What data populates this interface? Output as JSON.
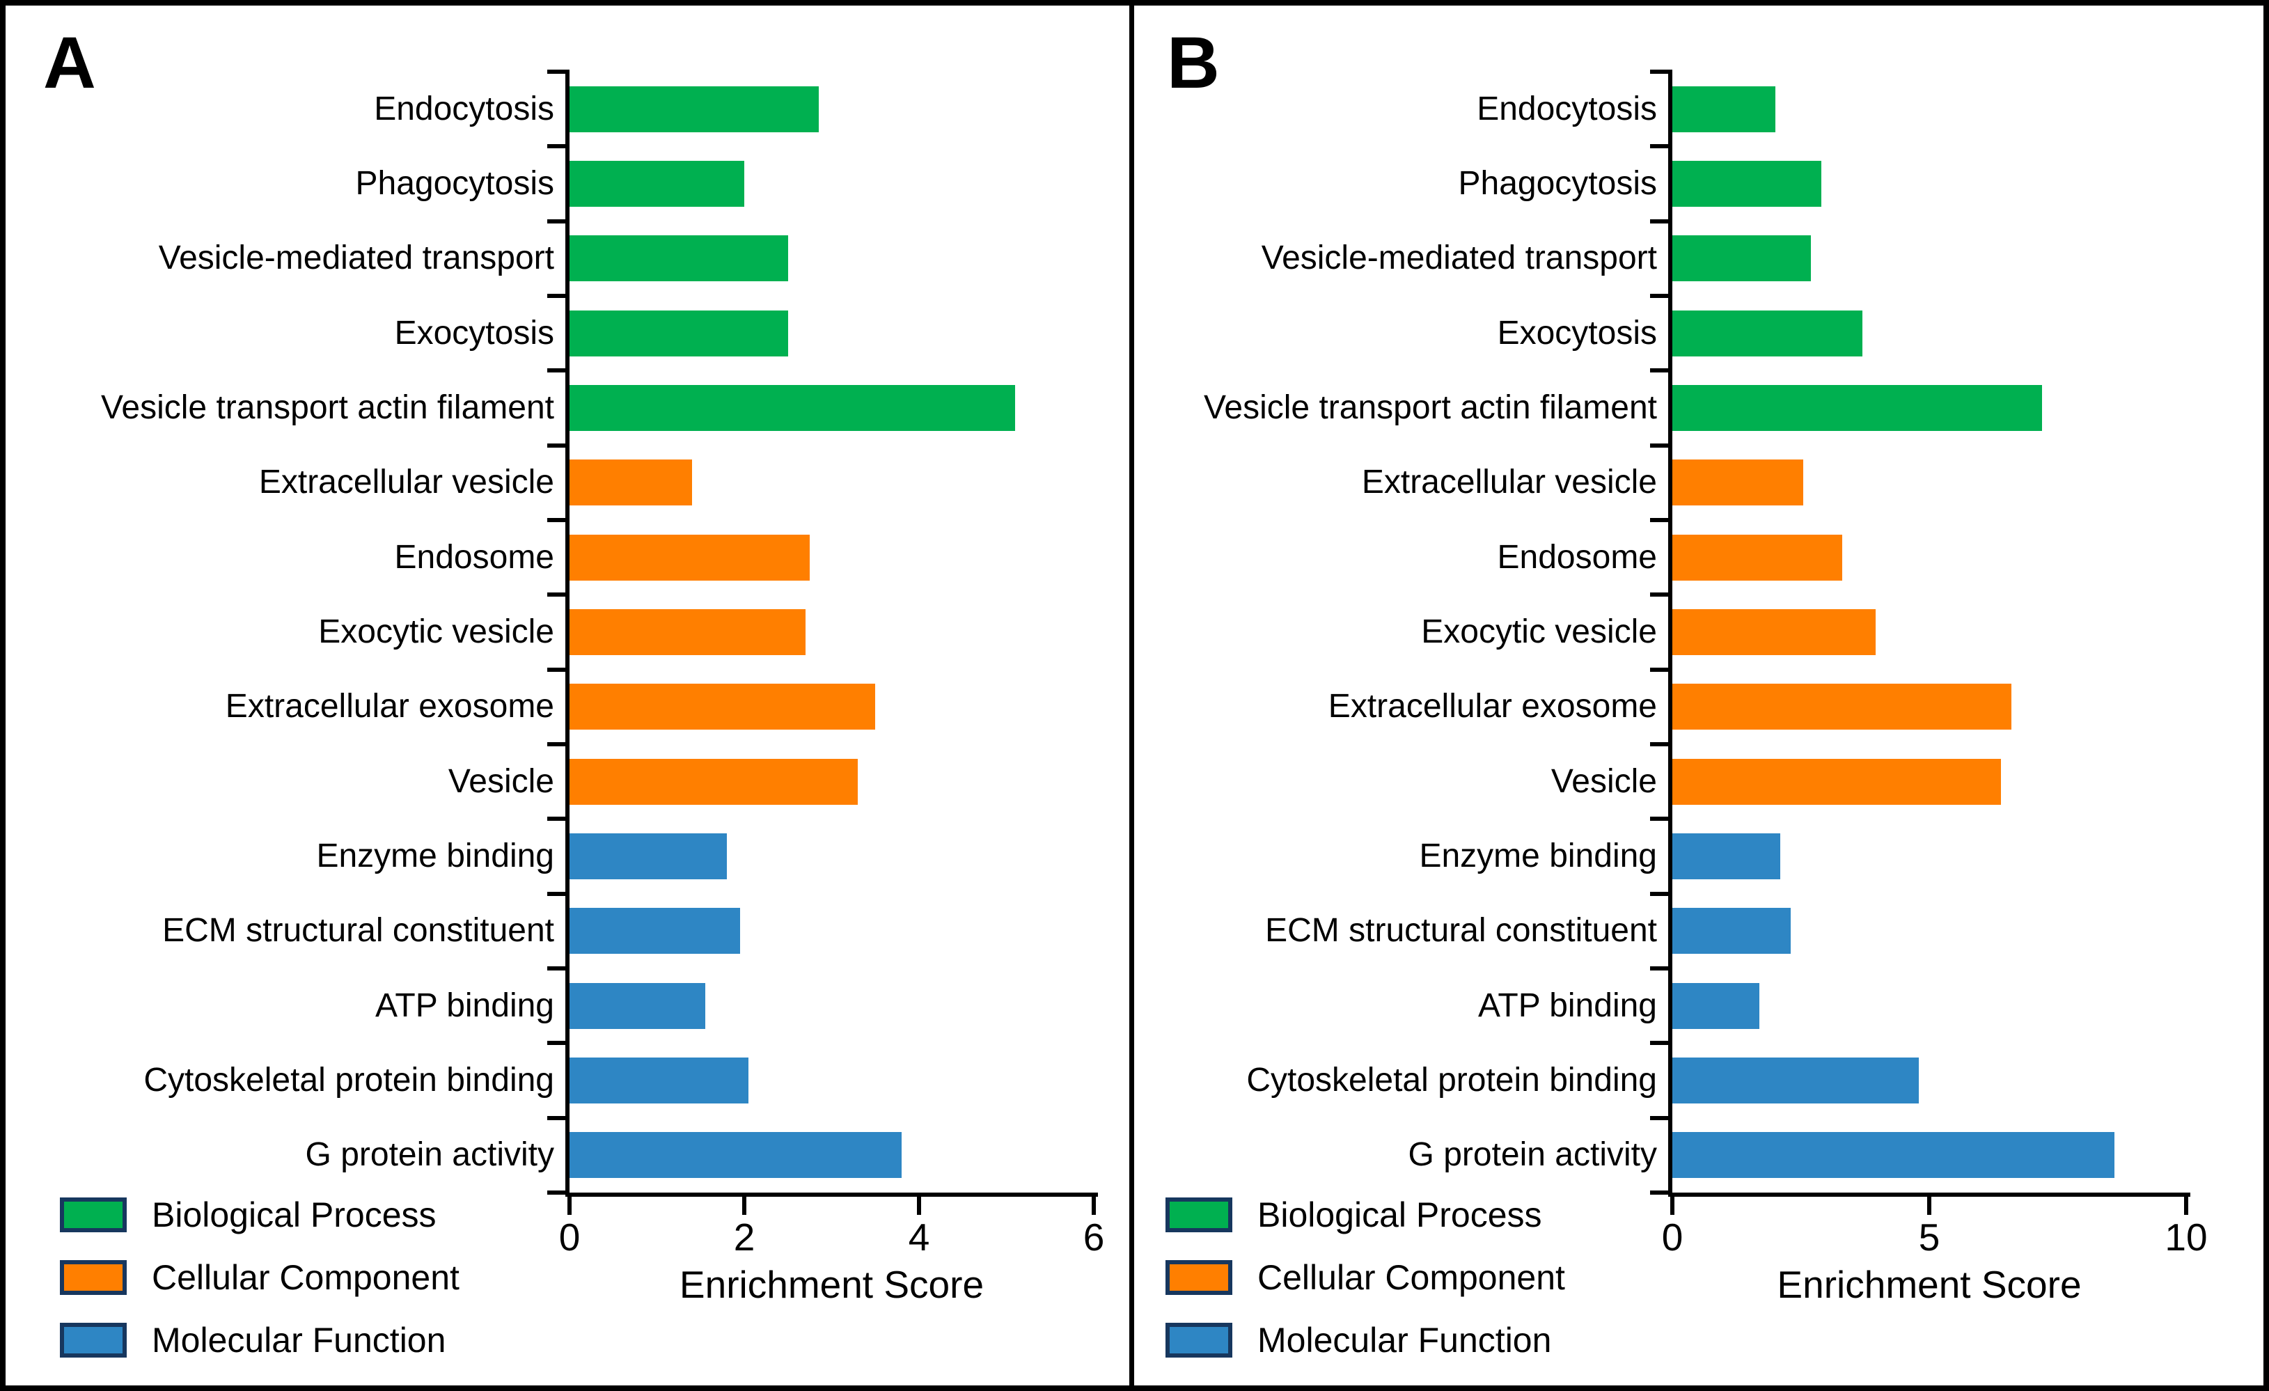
{
  "figure_title": "",
  "chart_data": [
    {
      "type": "bar",
      "orientation": "horizontal",
      "panel": "A",
      "xlabel": "Enrichment Score",
      "xlim": [
        0,
        6
      ],
      "xticks": [
        0,
        2,
        4,
        6
      ],
      "grid": false,
      "legend_position": "bottom-left",
      "categories": [
        "Endocytosis",
        "Phagocytosis",
        "Vesicle-mediated transport",
        "Exocytosis",
        "Vesicle transport actin filament",
        "Extracellular vesicle",
        "Endosome",
        "Exocytic vesicle",
        "Extracellular exosome",
        "Vesicle",
        "Enzyme binding",
        "ECM structural constituent",
        "ATP binding",
        "Cytoskeletal protein binding",
        "G protein activity"
      ],
      "values": [
        2.85,
        2.0,
        2.5,
        2.5,
        5.1,
        1.4,
        2.75,
        2.7,
        3.5,
        3.3,
        1.8,
        1.95,
        1.55,
        2.05,
        3.8
      ],
      "group_of": [
        "Biological Process",
        "Biological Process",
        "Biological Process",
        "Biological Process",
        "Biological Process",
        "Cellular Component",
        "Cellular Component",
        "Cellular Component",
        "Cellular Component",
        "Cellular Component",
        "Molecular Function",
        "Molecular Function",
        "Molecular Function",
        "Molecular Function",
        "Molecular Function"
      ]
    },
    {
      "type": "bar",
      "orientation": "horizontal",
      "panel": "B",
      "xlabel": "Enrichment Score",
      "xlim": [
        0,
        10
      ],
      "xticks": [
        0,
        5,
        10
      ],
      "grid": false,
      "legend_position": "bottom-left",
      "categories": [
        "Endocytosis",
        "Phagocytosis",
        "Vesicle-mediated transport",
        "Exocytosis",
        "Vesicle transport actin filament",
        "Extracellular vesicle",
        "Endosome",
        "Exocytic vesicle",
        "Extracellular exosome",
        "Vesicle",
        "Enzyme binding",
        "ECM structural constituent",
        "ATP binding",
        "Cytoskeletal protein binding",
        "G protein activity"
      ],
      "values": [
        2.0,
        2.9,
        2.7,
        3.7,
        7.2,
        2.55,
        3.3,
        3.95,
        6.6,
        6.4,
        2.1,
        2.3,
        1.7,
        4.8,
        8.6
      ],
      "group_of": [
        "Biological Process",
        "Biological Process",
        "Biological Process",
        "Biological Process",
        "Biological Process",
        "Cellular Component",
        "Cellular Component",
        "Cellular Component",
        "Cellular Component",
        "Cellular Component",
        "Molecular Function",
        "Molecular Function",
        "Molecular Function",
        "Molecular Function",
        "Molecular Function"
      ]
    }
  ],
  "legend": {
    "items": [
      {
        "label": "Biological Process",
        "color": "#00B050"
      },
      {
        "label": "Cellular Component",
        "color": "#FF7F00"
      },
      {
        "label": "Molecular Function",
        "color": "#2E86C4"
      }
    ],
    "swatch_border_color": "#17375E"
  },
  "colors": {
    "axis": "#000000",
    "background": "#FFFFFF"
  }
}
